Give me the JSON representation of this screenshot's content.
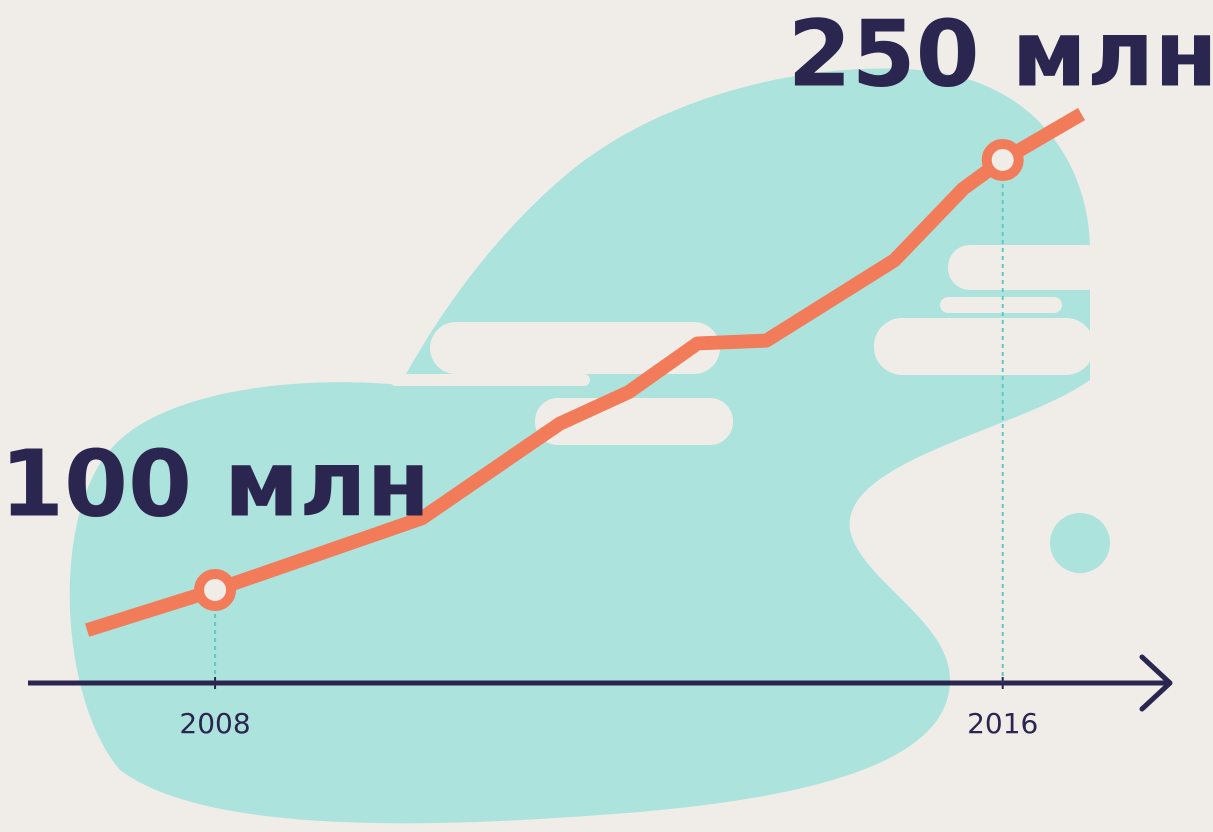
{
  "chart_data": {
    "type": "line",
    "x": [
      2006.7,
      2008,
      2010.1,
      2011.5,
      2012.2,
      2012.9,
      2013.6,
      2014.9,
      2015.6,
      2016,
      2016.8
    ],
    "series": [
      {
        "color": "#f27b5a",
        "values": [
          86,
          100,
          125,
          158,
          169,
          186,
          187,
          215,
          240,
          250,
          266
        ],
        "value_labels": [
          null,
          "100 млн",
          null,
          null,
          null,
          null,
          null,
          null,
          null,
          "250 млн",
          null
        ]
      }
    ],
    "xlim": [
      2006.1,
      2017.75
    ],
    "xticks": [
      2008,
      2016
    ],
    "ylim": [
      68.6,
      305.8
    ]
  }
}
